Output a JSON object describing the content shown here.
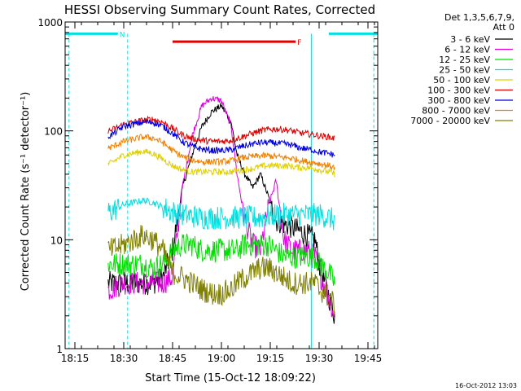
{
  "chart_data": {
    "type": "line",
    "title": "HESSI Observing Summary Count Rates, Corrected",
    "xlabel": "Start Time (15-Oct-12 18:09:22)",
    "ylabel": "Corrected Count Rate (s⁻¹ detector⁻¹)",
    "yscale": "log",
    "ylim": [
      1,
      1000
    ],
    "xlim_minutes": [
      18.2,
      19.8
    ],
    "xticks": [
      {
        "m": 18.25,
        "label": "18:15"
      },
      {
        "m": 18.5,
        "label": "18:30"
      },
      {
        "m": 18.75,
        "label": "18:45"
      },
      {
        "m": 19.0,
        "label": "19:00"
      },
      {
        "m": 19.25,
        "label": "19:15"
      },
      {
        "m": 19.5,
        "label": "19:30"
      },
      {
        "m": 19.75,
        "label": "19:45"
      }
    ],
    "yticks": [
      {
        "v": 1,
        "label": "1"
      },
      {
        "v": 10,
        "label": "10"
      },
      {
        "v": 100,
        "label": "100"
      },
      {
        "v": 1000,
        "label": "1000"
      }
    ],
    "legend_header": [
      "Det 1,3,5,6,7,9,",
      "Att 0"
    ],
    "legend_position": "top-right outside",
    "timestamp": "16-Oct-2012 13:03",
    "flags": [
      {
        "label": "N",
        "color": "#00e0e0",
        "segments": [
          [
            18.2,
            18.47
          ],
          [
            19.55,
            19.8
          ]
        ],
        "y": 780
      },
      {
        "label": "F",
        "color": "#e00000",
        "segments": [
          [
            18.75,
            19.38
          ]
        ],
        "y": 660
      }
    ],
    "vlines": [
      {
        "x": 18.22,
        "color": "#00e0e0",
        "dash": true
      },
      {
        "x": 18.52,
        "color": "#00e0e0",
        "dash": true
      },
      {
        "x": 19.46,
        "color": "#00e0e0",
        "dash": false
      },
      {
        "x": 19.78,
        "color": "#00e0e0",
        "dash": true
      }
    ],
    "data_range": [
      18.42,
      19.58
    ],
    "series": [
      {
        "name": "3 - 6 keV",
        "color": "#000000",
        "x": [
          18.43,
          18.5,
          18.6,
          18.65,
          18.7,
          18.75,
          18.8,
          18.85,
          18.9,
          18.95,
          19.0,
          19.05,
          19.08,
          19.12,
          19.16,
          19.2,
          19.24,
          19.28,
          19.32,
          19.36,
          19.4,
          19.44,
          19.48,
          19.5,
          19.55,
          19.58
        ],
        "y": [
          4,
          4,
          4,
          4,
          4.5,
          8,
          30,
          60,
          110,
          150,
          170,
          120,
          60,
          40,
          30,
          40,
          25,
          15,
          14,
          13,
          12,
          11,
          10,
          6,
          3,
          2
        ]
      },
      {
        "name": "6 - 12 keV",
        "color": "#e000e0",
        "x": [
          18.43,
          18.5,
          18.6,
          18.65,
          18.7,
          18.75,
          18.8,
          18.85,
          18.9,
          18.95,
          19.0,
          19.05,
          19.08,
          19.12,
          19.16,
          19.2,
          19.24,
          19.28,
          19.32,
          19.36,
          19.4,
          19.44,
          19.48,
          19.5,
          19.55,
          19.58
        ],
        "y": [
          3.5,
          4,
          4,
          4,
          4,
          4.5,
          30,
          90,
          170,
          200,
          190,
          110,
          40,
          15,
          9,
          8,
          20,
          35,
          10,
          8,
          8,
          8,
          7,
          5,
          3,
          2
        ]
      },
      {
        "name": "12 - 25 keV",
        "color": "#00e000",
        "x": [
          18.43,
          18.5,
          18.6,
          18.65,
          18.7,
          18.75,
          18.8,
          18.85,
          18.9,
          18.95,
          19.0,
          19.05,
          19.08,
          19.12,
          19.16,
          19.2,
          19.24,
          19.28,
          19.32,
          19.36,
          19.4,
          19.44,
          19.48,
          19.5,
          19.55,
          19.58
        ],
        "y": [
          6,
          6,
          6,
          5.5,
          6,
          8,
          9,
          9,
          8,
          8,
          8,
          8,
          8,
          9,
          9,
          9,
          9,
          8,
          7,
          7,
          7,
          7,
          7,
          6,
          5,
          4
        ]
      },
      {
        "name": "25 - 50 keV",
        "color": "#00e0e0",
        "x": [
          18.43,
          18.5,
          18.6,
          18.65,
          18.7,
          18.75,
          18.8,
          18.85,
          18.9,
          18.95,
          19.0,
          19.05,
          19.08,
          19.12,
          19.16,
          19.2,
          19.24,
          19.28,
          19.32,
          19.36,
          19.4,
          19.44,
          19.48,
          19.5,
          19.55,
          19.58
        ],
        "y": [
          18,
          21,
          23,
          22,
          20,
          18,
          17,
          16.5,
          16,
          16,
          16,
          16,
          16,
          16,
          16,
          16,
          16.5,
          17,
          17,
          17,
          17,
          17,
          17,
          17,
          16,
          15
        ]
      },
      {
        "name": "50 - 100 keV",
        "color": "#e0d000",
        "x": [
          18.43,
          18.5,
          18.6,
          18.65,
          18.7,
          18.75,
          18.8,
          18.85,
          18.9,
          18.95,
          19.0,
          19.05,
          19.08,
          19.12,
          19.16,
          19.2,
          19.24,
          19.28,
          19.32,
          19.36,
          19.4,
          19.44,
          19.48,
          19.5,
          19.55,
          19.58
        ],
        "y": [
          50,
          60,
          65,
          62,
          55,
          48,
          44,
          42,
          42,
          42,
          42,
          42,
          43,
          44,
          45,
          47,
          48,
          48,
          48,
          47,
          46,
          46,
          45,
          44,
          42,
          40
        ]
      },
      {
        "name": "100 - 300 keV",
        "color": "#e00000",
        "x": [
          18.43,
          18.5,
          18.6,
          18.65,
          18.7,
          18.75,
          18.8,
          18.85,
          18.9,
          18.95,
          19.0,
          19.05,
          19.08,
          19.12,
          19.16,
          19.2,
          19.24,
          19.28,
          19.32,
          19.36,
          19.4,
          19.44,
          19.48,
          19.5,
          19.55,
          19.58
        ],
        "y": [
          100,
          115,
          125,
          128,
          120,
          105,
          92,
          85,
          82,
          80,
          80,
          82,
          85,
          90,
          95,
          100,
          103,
          104,
          103,
          100,
          96,
          94,
          92,
          90,
          88,
          85
        ]
      },
      {
        "name": "300 - 800 keV",
        "color": "#0000e0",
        "x": [
          18.43,
          18.5,
          18.6,
          18.65,
          18.7,
          18.75,
          18.8,
          18.85,
          18.9,
          18.95,
          19.0,
          19.05,
          19.08,
          19.12,
          19.16,
          19.2,
          19.24,
          19.28,
          19.32,
          19.36,
          19.4,
          19.44,
          19.48,
          19.5,
          19.55,
          19.58
        ],
        "y": [
          90,
          110,
          120,
          120,
          110,
          95,
          80,
          72,
          68,
          66,
          66,
          67,
          70,
          73,
          76,
          78,
          78,
          77,
          76,
          74,
          70,
          68,
          66,
          64,
          62,
          60
        ]
      },
      {
        "name": "800 - 7000 keV",
        "color": "#f08000",
        "x": [
          18.43,
          18.5,
          18.6,
          18.65,
          18.7,
          18.75,
          18.8,
          18.85,
          18.9,
          18.95,
          19.0,
          19.05,
          19.08,
          19.12,
          19.16,
          19.2,
          19.24,
          19.28,
          19.32,
          19.36,
          19.4,
          19.44,
          19.48,
          19.5,
          19.55,
          19.58
        ],
        "y": [
          70,
          80,
          88,
          86,
          78,
          66,
          58,
          54,
          52,
          52,
          52,
          53,
          55,
          57,
          58,
          59,
          59,
          58,
          57,
          56,
          54,
          52,
          51,
          50,
          48,
          46
        ]
      },
      {
        "name": "7000 - 20000 keV",
        "color": "#808000",
        "x": [
          18.43,
          18.5,
          18.6,
          18.65,
          18.7,
          18.75,
          18.8,
          18.85,
          18.9,
          18.95,
          19.0,
          19.05,
          19.08,
          19.12,
          19.16,
          19.2,
          19.24,
          19.28,
          19.32,
          19.36,
          19.4,
          19.44,
          19.48,
          19.5,
          19.55,
          19.58
        ],
        "y": [
          8,
          9,
          11,
          10,
          8,
          5,
          4.5,
          4,
          3.5,
          3.2,
          3.2,
          3.5,
          4,
          4.5,
          5,
          5.5,
          5.5,
          5,
          4.5,
          4,
          4,
          4,
          4,
          3.5,
          3,
          2.5
        ]
      }
    ]
  }
}
